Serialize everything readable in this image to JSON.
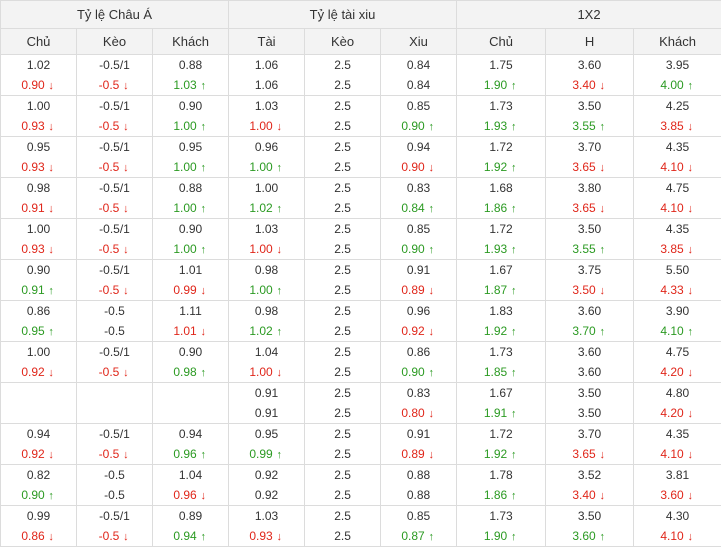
{
  "headers": {
    "groups": [
      "Tỷ lệ Châu Á",
      "Tỷ lệ tài xiu",
      "1X2"
    ],
    "columns": [
      "Chủ",
      "Kèo",
      "Khách",
      "Tài",
      "Kèo",
      "Xiu",
      "Chủ",
      "H",
      "Khách"
    ]
  },
  "colors": {
    "up": "#2b9a22",
    "down": "#e0261a",
    "neutral": "#333333"
  },
  "icons": {
    "up": "arrow-up-icon",
    "down": "arrow-down-icon"
  },
  "rows": [
    [
      {
        "top": "1.02",
        "bottom": "0.90",
        "dir": "down"
      },
      {
        "top": "-0.5/1",
        "bottom": "-0.5",
        "dir": "down"
      },
      {
        "top": "0.88",
        "bottom": "1.03",
        "dir": "up"
      },
      {
        "top": "1.06",
        "bottom": "1.06",
        "dir": ""
      },
      {
        "top": "2.5",
        "bottom": "2.5",
        "dir": ""
      },
      {
        "top": "0.84",
        "bottom": "0.84",
        "dir": ""
      },
      {
        "top": "1.75",
        "bottom": "1.90",
        "dir": "up"
      },
      {
        "top": "3.60",
        "bottom": "3.40",
        "dir": "down"
      },
      {
        "top": "3.95",
        "bottom": "4.00",
        "dir": "up"
      }
    ],
    [
      {
        "top": "1.00",
        "bottom": "0.93",
        "dir": "down"
      },
      {
        "top": "-0.5/1",
        "bottom": "-0.5",
        "dir": "down"
      },
      {
        "top": "0.90",
        "bottom": "1.00",
        "dir": "up"
      },
      {
        "top": "1.03",
        "bottom": "1.00",
        "dir": "down"
      },
      {
        "top": "2.5",
        "bottom": "2.5",
        "dir": ""
      },
      {
        "top": "0.85",
        "bottom": "0.90",
        "dir": "up"
      },
      {
        "top": "1.73",
        "bottom": "1.93",
        "dir": "up"
      },
      {
        "top": "3.50",
        "bottom": "3.55",
        "dir": "up"
      },
      {
        "top": "4.25",
        "bottom": "3.85",
        "dir": "down"
      }
    ],
    [
      {
        "top": "0.95",
        "bottom": "0.93",
        "dir": "down"
      },
      {
        "top": "-0.5/1",
        "bottom": "-0.5",
        "dir": "down"
      },
      {
        "top": "0.95",
        "bottom": "1.00",
        "dir": "up"
      },
      {
        "top": "0.96",
        "bottom": "1.00",
        "dir": "up"
      },
      {
        "top": "2.5",
        "bottom": "2.5",
        "dir": ""
      },
      {
        "top": "0.94",
        "bottom": "0.90",
        "dir": "down"
      },
      {
        "top": "1.72",
        "bottom": "1.92",
        "dir": "up"
      },
      {
        "top": "3.70",
        "bottom": "3.65",
        "dir": "down"
      },
      {
        "top": "4.35",
        "bottom": "4.10",
        "dir": "down"
      }
    ],
    [
      {
        "top": "0.98",
        "bottom": "0.91",
        "dir": "down"
      },
      {
        "top": "-0.5/1",
        "bottom": "-0.5",
        "dir": "down"
      },
      {
        "top": "0.88",
        "bottom": "1.00",
        "dir": "up"
      },
      {
        "top": "1.00",
        "bottom": "1.02",
        "dir": "up"
      },
      {
        "top": "2.5",
        "bottom": "2.5",
        "dir": ""
      },
      {
        "top": "0.83",
        "bottom": "0.84",
        "dir": "up"
      },
      {
        "top": "1.68",
        "bottom": "1.86",
        "dir": "up"
      },
      {
        "top": "3.80",
        "bottom": "3.65",
        "dir": "down"
      },
      {
        "top": "4.75",
        "bottom": "4.10",
        "dir": "down"
      }
    ],
    [
      {
        "top": "1.00",
        "bottom": "0.93",
        "dir": "down"
      },
      {
        "top": "-0.5/1",
        "bottom": "-0.5",
        "dir": "down"
      },
      {
        "top": "0.90",
        "bottom": "1.00",
        "dir": "up"
      },
      {
        "top": "1.03",
        "bottom": "1.00",
        "dir": "down"
      },
      {
        "top": "2.5",
        "bottom": "2.5",
        "dir": ""
      },
      {
        "top": "0.85",
        "bottom": "0.90",
        "dir": "up"
      },
      {
        "top": "1.72",
        "bottom": "1.93",
        "dir": "up"
      },
      {
        "top": "3.50",
        "bottom": "3.55",
        "dir": "up"
      },
      {
        "top": "4.35",
        "bottom": "3.85",
        "dir": "down"
      }
    ],
    [
      {
        "top": "0.90",
        "bottom": "0.91",
        "dir": "up"
      },
      {
        "top": "-0.5/1",
        "bottom": "-0.5",
        "dir": "down"
      },
      {
        "top": "1.01",
        "bottom": "0.99",
        "dir": "down"
      },
      {
        "top": "0.98",
        "bottom": "1.00",
        "dir": "up"
      },
      {
        "top": "2.5",
        "bottom": "2.5",
        "dir": ""
      },
      {
        "top": "0.91",
        "bottom": "0.89",
        "dir": "down"
      },
      {
        "top": "1.67",
        "bottom": "1.87",
        "dir": "up"
      },
      {
        "top": "3.75",
        "bottom": "3.50",
        "dir": "down"
      },
      {
        "top": "5.50",
        "bottom": "4.33",
        "dir": "down"
      }
    ],
    [
      {
        "top": "0.86",
        "bottom": "0.95",
        "dir": "up"
      },
      {
        "top": "-0.5",
        "bottom": "-0.5",
        "dir": ""
      },
      {
        "top": "1.11",
        "bottom": "1.01",
        "dir": "down"
      },
      {
        "top": "0.98",
        "bottom": "1.02",
        "dir": "up"
      },
      {
        "top": "2.5",
        "bottom": "2.5",
        "dir": ""
      },
      {
        "top": "0.96",
        "bottom": "0.92",
        "dir": "down"
      },
      {
        "top": "1.83",
        "bottom": "1.92",
        "dir": "up"
      },
      {
        "top": "3.60",
        "bottom": "3.70",
        "dir": "up"
      },
      {
        "top": "3.90",
        "bottom": "4.10",
        "dir": "up"
      }
    ],
    [
      {
        "top": "1.00",
        "bottom": "0.92",
        "dir": "down"
      },
      {
        "top": "-0.5/1",
        "bottom": "-0.5",
        "dir": "down"
      },
      {
        "top": "0.90",
        "bottom": "0.98",
        "dir": "up"
      },
      {
        "top": "1.04",
        "bottom": "1.00",
        "dir": "down"
      },
      {
        "top": "2.5",
        "bottom": "2.5",
        "dir": ""
      },
      {
        "top": "0.86",
        "bottom": "0.90",
        "dir": "up"
      },
      {
        "top": "1.73",
        "bottom": "1.85",
        "dir": "up"
      },
      {
        "top": "3.60",
        "bottom": "3.60",
        "dir": ""
      },
      {
        "top": "4.75",
        "bottom": "4.20",
        "dir": "down"
      }
    ],
    [
      {
        "top": "",
        "bottom": "",
        "dir": ""
      },
      {
        "top": "",
        "bottom": "",
        "dir": ""
      },
      {
        "top": "",
        "bottom": "",
        "dir": ""
      },
      {
        "top": "0.91",
        "bottom": "0.91",
        "dir": ""
      },
      {
        "top": "2.5",
        "bottom": "2.5",
        "dir": ""
      },
      {
        "top": "0.83",
        "bottom": "0.80",
        "dir": "down"
      },
      {
        "top": "1.67",
        "bottom": "1.91",
        "dir": "up"
      },
      {
        "top": "3.50",
        "bottom": "3.50",
        "dir": ""
      },
      {
        "top": "4.80",
        "bottom": "4.20",
        "dir": "down"
      }
    ],
    [
      {
        "top": "0.94",
        "bottom": "0.92",
        "dir": "down"
      },
      {
        "top": "-0.5/1",
        "bottom": "-0.5",
        "dir": "down"
      },
      {
        "top": "0.94",
        "bottom": "0.96",
        "dir": "up"
      },
      {
        "top": "0.95",
        "bottom": "0.99",
        "dir": "up"
      },
      {
        "top": "2.5",
        "bottom": "2.5",
        "dir": ""
      },
      {
        "top": "0.91",
        "bottom": "0.89",
        "dir": "down"
      },
      {
        "top": "1.72",
        "bottom": "1.92",
        "dir": "up"
      },
      {
        "top": "3.70",
        "bottom": "3.65",
        "dir": "down"
      },
      {
        "top": "4.35",
        "bottom": "4.10",
        "dir": "down"
      }
    ],
    [
      {
        "top": "0.82",
        "bottom": "0.90",
        "dir": "up"
      },
      {
        "top": "-0.5",
        "bottom": "-0.5",
        "dir": ""
      },
      {
        "top": "1.04",
        "bottom": "0.96",
        "dir": "down"
      },
      {
        "top": "0.92",
        "bottom": "0.92",
        "dir": ""
      },
      {
        "top": "2.5",
        "bottom": "2.5",
        "dir": ""
      },
      {
        "top": "0.88",
        "bottom": "0.88",
        "dir": ""
      },
      {
        "top": "1.78",
        "bottom": "1.86",
        "dir": "up"
      },
      {
        "top": "3.52",
        "bottom": "3.40",
        "dir": "down"
      },
      {
        "top": "3.81",
        "bottom": "3.60",
        "dir": "down"
      }
    ],
    [
      {
        "top": "0.99",
        "bottom": "0.86",
        "dir": "down"
      },
      {
        "top": "-0.5/1",
        "bottom": "-0.5",
        "dir": "down"
      },
      {
        "top": "0.89",
        "bottom": "0.94",
        "dir": "up"
      },
      {
        "top": "1.03",
        "bottom": "0.93",
        "dir": "down"
      },
      {
        "top": "2.5",
        "bottom": "2.5",
        "dir": ""
      },
      {
        "top": "0.85",
        "bottom": "0.87",
        "dir": "up"
      },
      {
        "top": "1.73",
        "bottom": "1.90",
        "dir": "up"
      },
      {
        "top": "3.50",
        "bottom": "3.60",
        "dir": "up"
      },
      {
        "top": "4.30",
        "bottom": "4.10",
        "dir": "down"
      }
    ]
  ]
}
